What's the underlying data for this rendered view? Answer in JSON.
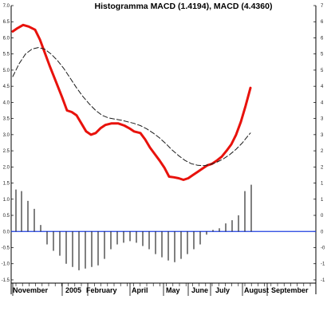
{
  "chart_data": {
    "type": "line",
    "title": "Histogramma MACD (1.4194), MACD (4.4360)",
    "xlabel": "",
    "ylabel": "",
    "ylim": [
      -1.6,
      7.0
    ],
    "grid": false,
    "x_labels": [
      "November",
      "2005",
      "February",
      "April",
      "May",
      "June",
      "July",
      "August",
      "September"
    ],
    "left_ticks": [
      "7.0",
      "6.5",
      "6.0",
      "5.5",
      "5.0",
      "4.5",
      "4.0",
      "3.5",
      "3.0",
      "2.5",
      "2.0",
      "1.5",
      "1.0",
      "0.5",
      "0.0",
      "-0.5",
      "-1.0",
      "-1.5"
    ],
    "right_ticks": [
      "7",
      "6",
      "6",
      "5",
      "5",
      "4",
      "4",
      "3",
      "3",
      "2",
      "2",
      "1",
      "1",
      "0",
      "0",
      "-0",
      "-1",
      "-1"
    ],
    "zero_line": 0.0,
    "series": [
      {
        "style": "solid-thick",
        "color": "#e8120c",
        "points": [
          [
            16,
            6.2
          ],
          [
            22,
            6.3
          ],
          [
            29,
            6.4
          ],
          [
            36,
            6.35
          ],
          [
            44,
            6.25
          ],
          [
            50,
            5.95
          ],
          [
            56,
            5.55
          ],
          [
            62,
            5.15
          ],
          [
            70,
            4.65
          ],
          [
            78,
            4.15
          ],
          [
            84,
            3.75
          ],
          [
            90,
            3.7
          ],
          [
            96,
            3.6
          ],
          [
            102,
            3.35
          ],
          [
            108,
            3.1
          ],
          [
            114,
            3.0
          ],
          [
            120,
            3.05
          ],
          [
            126,
            3.2
          ],
          [
            132,
            3.3
          ],
          [
            140,
            3.35
          ],
          [
            148,
            3.35
          ],
          [
            156,
            3.28
          ],
          [
            162,
            3.2
          ],
          [
            168,
            3.1
          ],
          [
            176,
            3.05
          ],
          [
            182,
            2.85
          ],
          [
            188,
            2.6
          ],
          [
            194,
            2.4
          ],
          [
            200,
            2.2
          ],
          [
            206,
            1.98
          ],
          [
            212,
            1.7
          ],
          [
            218,
            1.68
          ],
          [
            224,
            1.65
          ],
          [
            230,
            1.6
          ],
          [
            236,
            1.65
          ],
          [
            242,
            1.75
          ],
          [
            248,
            1.85
          ],
          [
            254,
            1.95
          ],
          [
            260,
            2.05
          ],
          [
            266,
            2.1
          ],
          [
            272,
            2.2
          ],
          [
            278,
            2.32
          ],
          [
            284,
            2.5
          ],
          [
            290,
            2.7
          ],
          [
            296,
            3.0
          ],
          [
            302,
            3.4
          ],
          [
            308,
            3.9
          ],
          [
            314,
            4.45
          ]
        ]
      },
      {
        "style": "dashed",
        "color": "#1a1a1a",
        "points": [
          [
            16,
            4.8
          ],
          [
            24,
            5.2
          ],
          [
            32,
            5.5
          ],
          [
            40,
            5.65
          ],
          [
            48,
            5.7
          ],
          [
            56,
            5.65
          ],
          [
            64,
            5.5
          ],
          [
            72,
            5.3
          ],
          [
            80,
            5.05
          ],
          [
            88,
            4.75
          ],
          [
            96,
            4.45
          ],
          [
            104,
            4.18
          ],
          [
            112,
            3.95
          ],
          [
            120,
            3.75
          ],
          [
            128,
            3.6
          ],
          [
            136,
            3.52
          ],
          [
            144,
            3.48
          ],
          [
            152,
            3.45
          ],
          [
            160,
            3.4
          ],
          [
            168,
            3.35
          ],
          [
            176,
            3.28
          ],
          [
            184,
            3.18
          ],
          [
            192,
            3.05
          ],
          [
            200,
            2.9
          ],
          [
            208,
            2.72
          ],
          [
            216,
            2.52
          ],
          [
            224,
            2.35
          ],
          [
            232,
            2.2
          ],
          [
            240,
            2.1
          ],
          [
            248,
            2.05
          ],
          [
            256,
            2.04
          ],
          [
            264,
            2.08
          ],
          [
            272,
            2.15
          ],
          [
            280,
            2.25
          ],
          [
            288,
            2.38
          ],
          [
            296,
            2.55
          ],
          [
            304,
            2.75
          ],
          [
            312,
            3.0
          ],
          [
            314,
            3.05
          ]
        ]
      }
    ],
    "histogram": {
      "color": "#000000",
      "bars": [
        [
          20,
          1.3
        ],
        [
          27,
          1.25
        ],
        [
          35,
          0.95
        ],
        [
          43,
          0.7
        ],
        [
          51,
          0.2
        ],
        [
          59,
          -0.4
        ],
        [
          67,
          -0.6
        ],
        [
          75,
          -0.75
        ],
        [
          83,
          -1.0
        ],
        [
          91,
          -1.1
        ],
        [
          99,
          -1.2
        ],
        [
          107,
          -1.15
        ],
        [
          115,
          -1.1
        ],
        [
          123,
          -1.05
        ],
        [
          131,
          -0.85
        ],
        [
          139,
          -0.55
        ],
        [
          147,
          -0.4
        ],
        [
          155,
          -0.35
        ],
        [
          163,
          -0.3
        ],
        [
          171,
          -0.35
        ],
        [
          179,
          -0.45
        ],
        [
          187,
          -0.55
        ],
        [
          195,
          -0.7
        ],
        [
          203,
          -0.8
        ],
        [
          211,
          -0.9
        ],
        [
          219,
          -0.95
        ],
        [
          227,
          -0.85
        ],
        [
          235,
          -0.7
        ],
        [
          243,
          -0.55
        ],
        [
          251,
          -0.4
        ],
        [
          259,
          -0.1
        ],
        [
          267,
          0.05
        ],
        [
          275,
          0.1
        ],
        [
          283,
          0.25
        ],
        [
          291,
          0.35
        ],
        [
          299,
          0.5
        ],
        [
          307,
          1.25
        ],
        [
          315,
          1.45
        ]
      ]
    }
  }
}
